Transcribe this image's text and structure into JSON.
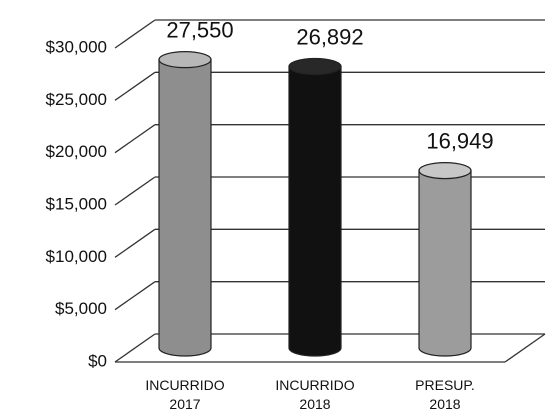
{
  "chart_data": {
    "type": "bar",
    "categories": [
      "INCURRIDO 2017",
      "INCURRIDO 2018",
      "PRESUP. 2018"
    ],
    "values": [
      27550,
      26892,
      16949
    ],
    "value_labels": [
      "27,550",
      "26,892",
      "16,949"
    ],
    "colors": [
      "#8e8e8e",
      "#111111",
      "#9c9c9c"
    ],
    "ylim": [
      0,
      30000
    ],
    "yticks": [
      {
        "value": 0,
        "label": "$0"
      },
      {
        "value": 5000,
        "label": "$5,000"
      },
      {
        "value": 10000,
        "label": "$10,000"
      },
      {
        "value": 15000,
        "label": "$15,000"
      },
      {
        "value": 20000,
        "label": "$20,000"
      },
      {
        "value": 25000,
        "label": "$25,000"
      },
      {
        "value": 30000,
        "label": "$30,000"
      }
    ],
    "grid": true
  }
}
